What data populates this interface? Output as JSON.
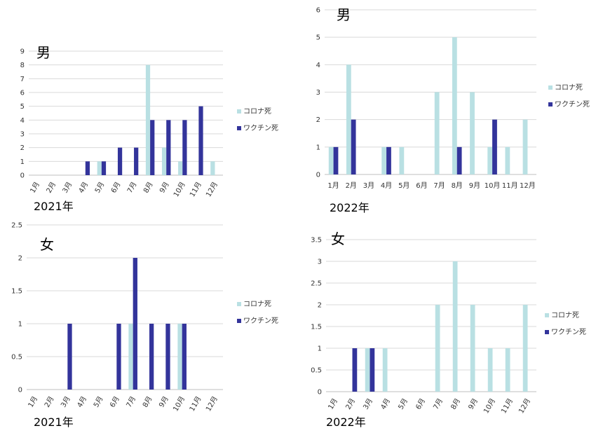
{
  "colors": {
    "corona": "#b9e0e3",
    "vaccine": "#33349b",
    "grid": "#d9d9d9",
    "axis": "#bfbfbf"
  },
  "legend": {
    "corona": "コロナ死",
    "vaccine": "ワクチン死"
  },
  "chart_data": [
    {
      "type": "bar",
      "title": "男",
      "year_label": "2021年",
      "categories": [
        "1月",
        "2月",
        "3月",
        "4月",
        "5月",
        "6月",
        "7月",
        "8月",
        "9月",
        "10月",
        "11月",
        "12月"
      ],
      "series": [
        {
          "name": "コロナ死",
          "values": [
            0,
            0,
            0,
            0,
            1,
            0,
            0,
            8,
            2,
            1,
            0,
            1
          ]
        },
        {
          "name": "ワクチン死",
          "values": [
            0,
            0,
            0,
            1,
            1,
            2,
            2,
            4,
            4,
            4,
            5,
            0
          ]
        }
      ],
      "yticks": [
        "0",
        "1",
        "2",
        "3",
        "4",
        "5",
        "6",
        "7",
        "8",
        "9"
      ],
      "ylim": [
        0,
        9
      ],
      "legend_position": "right",
      "grid": true,
      "tick_rotation": -60
    },
    {
      "type": "bar",
      "title": "男",
      "year_label": "2022年",
      "categories": [
        "1月",
        "2月",
        "3月",
        "4月",
        "5月",
        "6月",
        "7月",
        "8月",
        "9月",
        "10月",
        "11月",
        "12月"
      ],
      "series": [
        {
          "name": "コロナ死",
          "values": [
            1,
            4,
            0,
            1,
            1,
            0,
            3,
            5,
            3,
            1,
            1,
            2
          ]
        },
        {
          "name": "ワクチン死",
          "values": [
            1,
            2,
            0,
            1,
            0,
            0,
            0,
            1,
            0,
            2,
            0,
            0
          ]
        }
      ],
      "yticks": [
        "0",
        "1",
        "2",
        "3",
        "4",
        "5",
        "6"
      ],
      "ylim": [
        0,
        6
      ],
      "legend_position": "right",
      "grid": true,
      "tick_rotation": 0
    },
    {
      "type": "bar",
      "title": "女",
      "year_label": "2021年",
      "categories": [
        "1月",
        "2月",
        "3月",
        "4月",
        "5月",
        "6月",
        "7月",
        "8月",
        "9月",
        "10月",
        "11月",
        "12月"
      ],
      "series": [
        {
          "name": "コロナ死",
          "values": [
            0,
            0,
            0,
            0,
            0,
            0,
            1,
            0,
            0,
            1,
            0,
            0
          ]
        },
        {
          "name": "ワクチン死",
          "values": [
            0,
            0,
            1,
            0,
            0,
            1,
            2,
            1,
            1,
            1,
            0,
            0
          ]
        }
      ],
      "yticks": [
        "0",
        "0.5",
        "1",
        "1.5",
        "2",
        "2.5"
      ],
      "ylim": [
        0,
        2.5
      ],
      "legend_position": "right",
      "grid": true,
      "tick_rotation": -60
    },
    {
      "type": "bar",
      "title": "女",
      "year_label": "2022年",
      "categories": [
        "1月",
        "2月",
        "3月",
        "4月",
        "5月",
        "6月",
        "7月",
        "8月",
        "9月",
        "10月",
        "11月",
        "12月"
      ],
      "series": [
        {
          "name": "コロナ死",
          "values": [
            0,
            0,
            1,
            1,
            0,
            0,
            2,
            3,
            2,
            1,
            1,
            2
          ]
        },
        {
          "name": "ワクチン死",
          "values": [
            0,
            1,
            1,
            0,
            0,
            0,
            0,
            0,
            0,
            0,
            0,
            0
          ]
        }
      ],
      "yticks": [
        "0",
        "0.5",
        "1",
        "1.5",
        "2",
        "2.5",
        "3",
        "3.5"
      ],
      "ylim": [
        0,
        3.5
      ],
      "legend_position": "right",
      "grid": true,
      "tick_rotation": -60
    }
  ]
}
